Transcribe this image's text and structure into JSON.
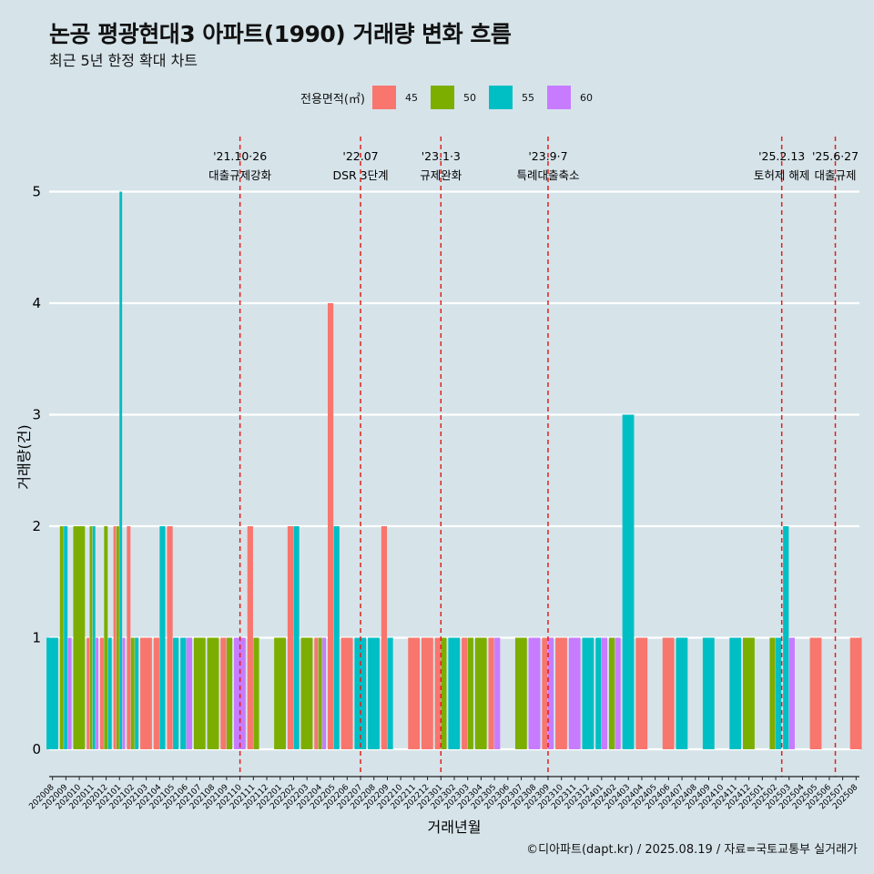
{
  "chart_data": {
    "type": "bar",
    "title": "논공 평광현대3 아파트(1990) 거래량 변화 흐름",
    "subtitle": "최근 5년 한정 확대 차트",
    "xlabel": "거래년월",
    "ylabel": "거래량(건)",
    "ylim": [
      -0.2,
      5.35
    ],
    "yticks": [
      0,
      1,
      2,
      3,
      4,
      5
    ],
    "grid": true,
    "legend": {
      "title": "전용면적(㎡)",
      "position": "top",
      "entries": [
        {
          "label": "45",
          "color": "#F8766D"
        },
        {
          "label": "50",
          "color": "#7CAE00"
        },
        {
          "label": "55",
          "color": "#00BFC4"
        },
        {
          "label": "60",
          "color": "#C77CFF"
        }
      ]
    },
    "categories": [
      "202008",
      "202009",
      "202010",
      "202011",
      "202012",
      "202101",
      "202102",
      "202103",
      "202104",
      "202105",
      "202106",
      "202107",
      "202108",
      "202109",
      "202110",
      "202111",
      "202112",
      "202201",
      "202202",
      "202203",
      "202204",
      "202205",
      "202206",
      "202207",
      "202208",
      "202209",
      "202210",
      "202211",
      "202212",
      "202301",
      "202302",
      "202303",
      "202304",
      "202305",
      "202306",
      "202307",
      "202308",
      "202309",
      "202310",
      "202311",
      "202312",
      "202401",
      "202402",
      "202403",
      "202404",
      "202405",
      "202406",
      "202407",
      "202408",
      "202409",
      "202410",
      "202411",
      "202412",
      "202501",
      "202502",
      "202503",
      "202504",
      "202505",
      "202506",
      "202507",
      "202508"
    ],
    "bars": [
      {
        "month": "202008",
        "area": "55",
        "value": 1
      },
      {
        "month": "202009",
        "area": "50",
        "value": 2
      },
      {
        "month": "202009",
        "area": "55",
        "value": 2
      },
      {
        "month": "202009",
        "area": "60",
        "value": 1
      },
      {
        "month": "202010",
        "area": "50",
        "value": 2
      },
      {
        "month": "202011",
        "area": "45",
        "value": 1
      },
      {
        "month": "202011",
        "area": "50",
        "value": 2
      },
      {
        "month": "202011",
        "area": "55",
        "value": 2
      },
      {
        "month": "202011",
        "area": "60",
        "value": 1
      },
      {
        "month": "202012",
        "area": "45",
        "value": 1
      },
      {
        "month": "202012",
        "area": "50",
        "value": 2
      },
      {
        "month": "202012",
        "area": "55",
        "value": 1
      },
      {
        "month": "202101",
        "area": "45",
        "value": 2
      },
      {
        "month": "202101",
        "area": "50",
        "value": 2
      },
      {
        "month": "202101",
        "area": "55",
        "value": 5
      },
      {
        "month": "202101",
        "area": "60",
        "value": 1
      },
      {
        "month": "202102",
        "area": "45",
        "value": 2
      },
      {
        "month": "202102",
        "area": "50",
        "value": 1
      },
      {
        "month": "202102",
        "area": "55",
        "value": 1
      },
      {
        "month": "202103",
        "area": "45",
        "value": 1
      },
      {
        "month": "202104",
        "area": "45",
        "value": 1
      },
      {
        "month": "202104",
        "area": "55",
        "value": 2
      },
      {
        "month": "202105",
        "area": "45",
        "value": 2
      },
      {
        "month": "202105",
        "area": "55",
        "value": 1
      },
      {
        "month": "202106",
        "area": "55",
        "value": 1
      },
      {
        "month": "202106",
        "area": "60",
        "value": 1
      },
      {
        "month": "202107",
        "area": "50",
        "value": 1
      },
      {
        "month": "202108",
        "area": "50",
        "value": 1
      },
      {
        "month": "202109",
        "area": "45",
        "value": 1
      },
      {
        "month": "202109",
        "area": "50",
        "value": 1
      },
      {
        "month": "202110",
        "area": "60",
        "value": 1
      },
      {
        "month": "202111",
        "area": "45",
        "value": 2
      },
      {
        "month": "202111",
        "area": "50",
        "value": 1
      },
      {
        "month": "202201",
        "area": "50",
        "value": 1
      },
      {
        "month": "202202",
        "area": "45",
        "value": 2
      },
      {
        "month": "202202",
        "area": "55",
        "value": 2
      },
      {
        "month": "202203",
        "area": "50",
        "value": 1
      },
      {
        "month": "202204",
        "area": "45",
        "value": 1
      },
      {
        "month": "202204",
        "area": "50",
        "value": 1
      },
      {
        "month": "202204",
        "area": "60",
        "value": 1
      },
      {
        "month": "202205",
        "area": "45",
        "value": 4
      },
      {
        "month": "202205",
        "area": "55",
        "value": 2
      },
      {
        "month": "202206",
        "area": "45",
        "value": 1
      },
      {
        "month": "202207",
        "area": "55",
        "value": 1
      },
      {
        "month": "202208",
        "area": "55",
        "value": 1
      },
      {
        "month": "202209",
        "area": "45",
        "value": 2
      },
      {
        "month": "202209",
        "area": "55",
        "value": 1
      },
      {
        "month": "202211",
        "area": "45",
        "value": 1
      },
      {
        "month": "202212",
        "area": "45",
        "value": 1
      },
      {
        "month": "202301",
        "area": "45",
        "value": 1
      },
      {
        "month": "202301",
        "area": "50",
        "value": 1
      },
      {
        "month": "202302",
        "area": "55",
        "value": 1
      },
      {
        "month": "202303",
        "area": "45",
        "value": 1
      },
      {
        "month": "202303",
        "area": "50",
        "value": 1
      },
      {
        "month": "202304",
        "area": "50",
        "value": 1
      },
      {
        "month": "202305",
        "area": "45",
        "value": 1
      },
      {
        "month": "202305",
        "area": "60",
        "value": 1
      },
      {
        "month": "202307",
        "area": "50",
        "value": 1
      },
      {
        "month": "202308",
        "area": "60",
        "value": 1
      },
      {
        "month": "202309",
        "area": "45",
        "value": 1
      },
      {
        "month": "202309",
        "area": "60",
        "value": 1
      },
      {
        "month": "202310",
        "area": "45",
        "value": 1
      },
      {
        "month": "202311",
        "area": "60",
        "value": 1
      },
      {
        "month": "202312",
        "area": "55",
        "value": 1
      },
      {
        "month": "202401",
        "area": "55",
        "value": 1
      },
      {
        "month": "202401",
        "area": "60",
        "value": 1
      },
      {
        "month": "202402",
        "area": "50",
        "value": 1
      },
      {
        "month": "202402",
        "area": "60",
        "value": 1
      },
      {
        "month": "202403",
        "area": "55",
        "value": 3
      },
      {
        "month": "202404",
        "area": "45",
        "value": 1
      },
      {
        "month": "202406",
        "area": "45",
        "value": 1
      },
      {
        "month": "202407",
        "area": "55",
        "value": 1
      },
      {
        "month": "202409",
        "area": "55",
        "value": 1
      },
      {
        "month": "202411",
        "area": "55",
        "value": 1
      },
      {
        "month": "202412",
        "area": "50",
        "value": 1
      },
      {
        "month": "202502",
        "area": "50",
        "value": 1
      },
      {
        "month": "202502",
        "area": "55",
        "value": 1
      },
      {
        "month": "202503",
        "area": "55",
        "value": 2
      },
      {
        "month": "202503",
        "area": "60",
        "value": 1
      },
      {
        "month": "202505",
        "area": "45",
        "value": 1
      },
      {
        "month": "202508",
        "area": "45",
        "value": 1
      }
    ],
    "events": [
      {
        "month": "202110",
        "offset": 0.0,
        "label_top": "'21.10·26",
        "label_bottom": "대출규제강화"
      },
      {
        "month": "202207",
        "offset": 0.0,
        "label_top": "'22.07",
        "label_bottom": "DSR 3단계"
      },
      {
        "month": "202301",
        "offset": 0.0,
        "label_top": "'23.1·3",
        "label_bottom": "규제완화"
      },
      {
        "month": "202309",
        "offset": 0.0,
        "label_top": "'23.9·7",
        "label_bottom": "특례대출축소"
      },
      {
        "month": "202502",
        "offset": 0.45,
        "label_top": "'25.2.13",
        "label_bottom": "토허제 해제"
      },
      {
        "month": "202506",
        "offset": 0.45,
        "label_top": "'25.6·27",
        "label_bottom": "대출규제"
      }
    ]
  },
  "caption": "©디아파트(dapt.kr) / 2025.08.19 / 자료=국토교통부 실거래가"
}
